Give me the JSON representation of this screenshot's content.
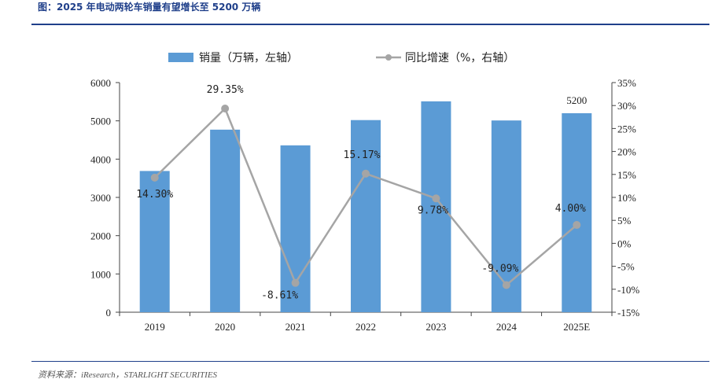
{
  "figure": {
    "title": "图：2025 年电动两轮车销量有望增长至 5200 万辆",
    "source": "资料来源：iResearch，STARLIGHT SECURITIES"
  },
  "colors": {
    "bar": "#5b9bd5",
    "line": "#a5a5a5",
    "accent": "#1f3f8a"
  },
  "chart_data": {
    "type": "bar",
    "title": "2025 年电动两轮车销量有望增长至 5200 万辆",
    "categories": [
      "2019",
      "2020",
      "2021",
      "2022",
      "2023",
      "2024",
      "2025E"
    ],
    "series": [
      {
        "name": "销量（万辆，左轴）",
        "type": "bar",
        "axis": "left",
        "values": [
          3690,
          4770,
          4360,
          5020,
          5510,
          5010,
          5200
        ],
        "labels": [
          "",
          "",
          "",
          "",
          "",
          "",
          "5200"
        ]
      },
      {
        "name": "同比增速（%，右轴）",
        "type": "line",
        "axis": "right",
        "values": [
          14.3,
          29.35,
          -8.61,
          15.17,
          9.78,
          -9.09,
          4.0
        ],
        "labels": [
          "14.30%",
          "29.35%",
          "-8.61%",
          "15.17%",
          "9.78%",
          "-9.09%",
          "4.00%"
        ]
      }
    ],
    "left_axis": {
      "ylim": [
        0,
        6000
      ],
      "ticks": [
        "0",
        "1000",
        "2000",
        "3000",
        "4000",
        "5000",
        "6000"
      ]
    },
    "right_axis": {
      "ylim": [
        -15,
        35
      ],
      "ticks": [
        "-15%",
        "-10%",
        "-5%",
        "0%",
        "5%",
        "10%",
        "15%",
        "20%",
        "25%",
        "30%",
        "35%"
      ]
    },
    "legend_position": "top-center",
    "grid": false
  }
}
